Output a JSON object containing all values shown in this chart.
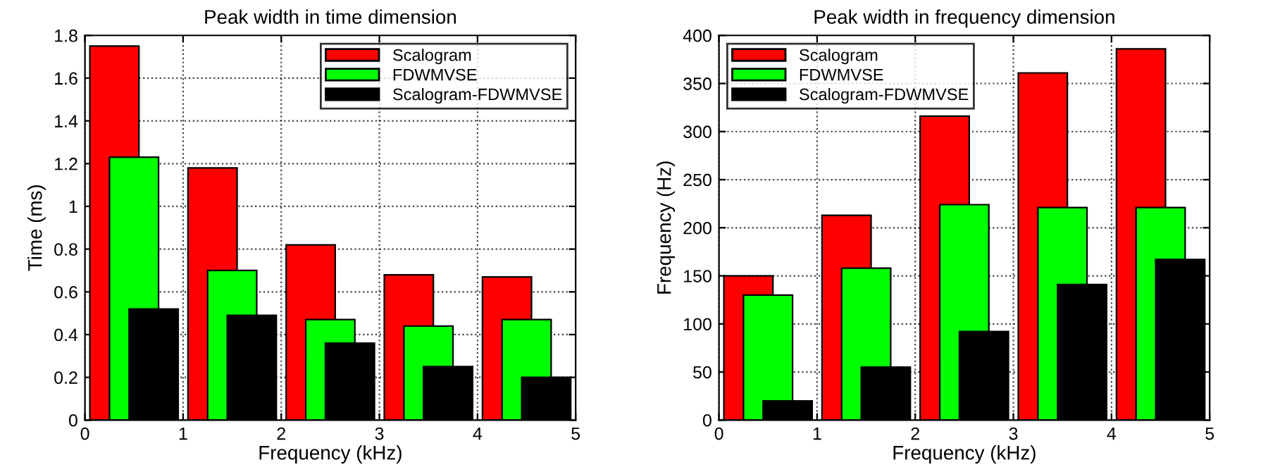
{
  "chart_data": [
    {
      "type": "bar",
      "title": "Peak width in time dimension",
      "xlabel": "Frequency (kHz)",
      "ylabel": "Time (ms)",
      "xlim": [
        0,
        5
      ],
      "xticks": [
        0,
        1,
        2,
        3,
        4,
        5
      ],
      "ylim": [
        0,
        1.8
      ],
      "yticks": [
        0,
        0.2,
        0.4,
        0.6,
        0.8,
        1,
        1.2,
        1.4,
        1.6,
        1.8
      ],
      "grid": true,
      "legend": "top right",
      "series": [
        {
          "name": "Scalogram",
          "color": "#ff0000",
          "x": [
            0.3,
            1.3,
            2.3,
            3.3,
            4.3
          ],
          "values": [
            1.75,
            1.18,
            0.82,
            0.68,
            0.67
          ]
        },
        {
          "name": "FDWMVSE",
          "color": "#00ff00",
          "x": [
            0.5,
            1.5,
            2.5,
            3.5,
            4.5
          ],
          "values": [
            1.23,
            0.7,
            0.47,
            0.44,
            0.47
          ]
        },
        {
          "name": "Scalogram-FDWMVSE",
          "color": "#000000",
          "x": [
            0.7,
            1.7,
            2.7,
            3.7,
            4.7
          ],
          "values": [
            0.52,
            0.49,
            0.36,
            0.25,
            0.2
          ]
        }
      ]
    },
    {
      "type": "bar",
      "title": "Peak width in frequency dimension",
      "xlabel": "Frequency (kHz)",
      "ylabel": "Frequency (Hz)",
      "xlim": [
        0,
        5
      ],
      "xticks": [
        0,
        1,
        2,
        3,
        4,
        5
      ],
      "ylim": [
        0,
        400
      ],
      "yticks": [
        0,
        50,
        100,
        150,
        200,
        250,
        300,
        350,
        400
      ],
      "grid": true,
      "legend": "top left",
      "series": [
        {
          "name": "Scalogram",
          "color": "#ff0000",
          "x": [
            0.3,
            1.3,
            2.3,
            3.3,
            4.3
          ],
          "values": [
            150,
            213,
            316,
            361,
            386
          ]
        },
        {
          "name": "FDWMVSE",
          "color": "#00ff00",
          "x": [
            0.5,
            1.5,
            2.5,
            3.5,
            4.5
          ],
          "values": [
            130,
            158,
            224,
            221,
            221
          ]
        },
        {
          "name": "Scalogram-FDWMVSE",
          "color": "#000000",
          "x": [
            0.7,
            1.7,
            2.7,
            3.7,
            4.7
          ],
          "values": [
            20,
            55,
            92,
            141,
            167
          ]
        }
      ]
    }
  ]
}
